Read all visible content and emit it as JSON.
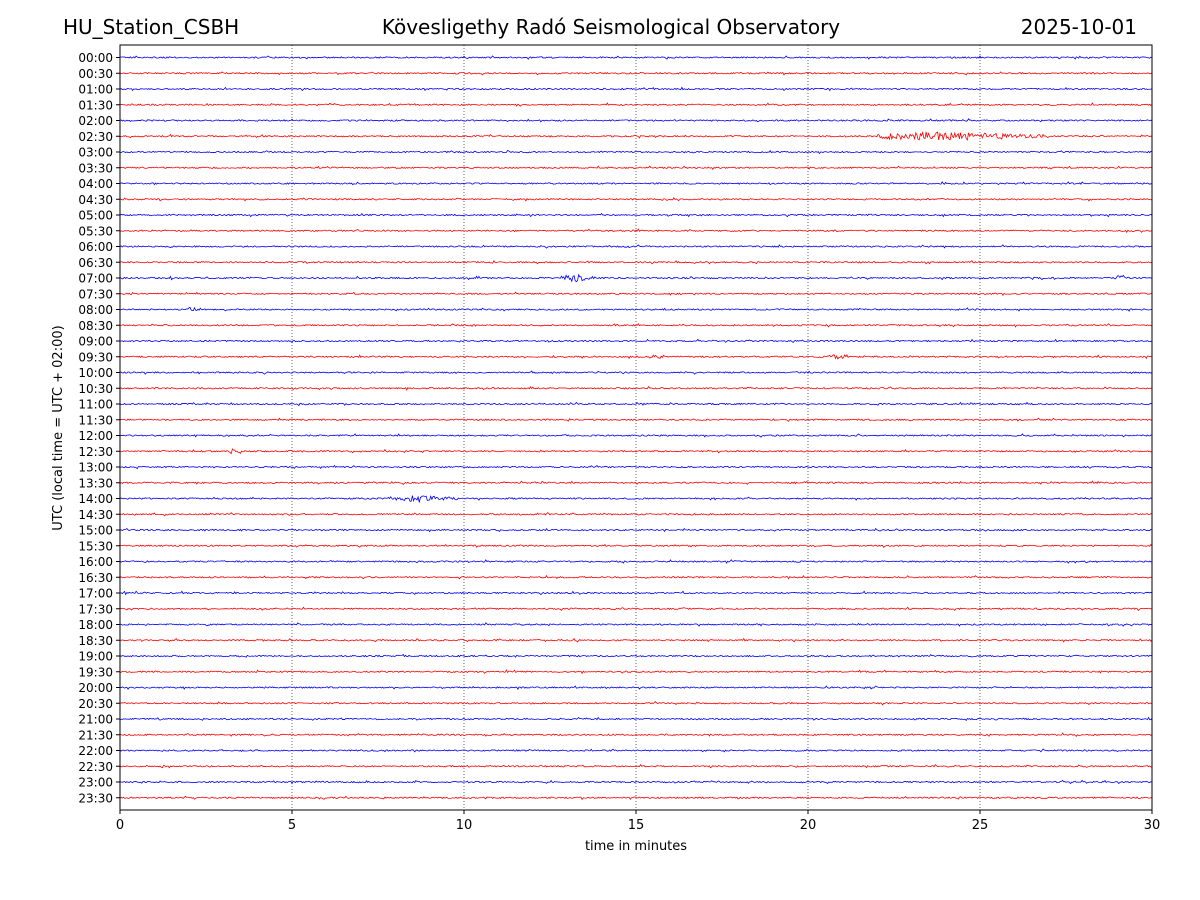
{
  "header": {
    "station": "HU_Station_CSBH",
    "observatory": "Kövesligethy Radó Seismological Observatory",
    "date": "2025-10-01"
  },
  "colors": {
    "even_rows": "#0000ff",
    "odd_rows": "#ff0000",
    "grid": "#000000"
  },
  "chart_data": {
    "type": "line",
    "subtype": "helicorder / seismogram drum plot",
    "title": "Kövesligethy Radó Seismological Observatory",
    "xlabel": "time in minutes",
    "ylabel": "UTC (local time = UTC + 02:00)",
    "xlim": [
      0,
      30
    ],
    "xticks": [
      0,
      5,
      10,
      15,
      20,
      25,
      30
    ],
    "grid": "vertical dotted lines at x = 5, 10, 15, 20, 25",
    "row_colors": "alternating blue / red",
    "rows": [
      "00:00",
      "00:30",
      "01:00",
      "01:30",
      "02:00",
      "02:30",
      "03:00",
      "03:30",
      "04:00",
      "04:30",
      "05:00",
      "05:30",
      "06:00",
      "06:30",
      "07:00",
      "07:30",
      "08:00",
      "08:30",
      "09:00",
      "09:30",
      "10:00",
      "10:30",
      "11:00",
      "11:30",
      "12:00",
      "12:30",
      "13:00",
      "13:30",
      "14:00",
      "14:30",
      "15:00",
      "15:30",
      "16:00",
      "16:30",
      "17:00",
      "17:30",
      "18:00",
      "18:30",
      "19:00",
      "19:30",
      "20:00",
      "20:30",
      "21:00",
      "21:30",
      "22:00",
      "22:30",
      "23:00",
      "23:30"
    ],
    "events": [
      {
        "row": "02:30",
        "x_start": 22.0,
        "x_end": 27.0,
        "amplitude": "moderate",
        "peak_x": 23.8
      },
      {
        "row": "07:00",
        "x_start": 12.8,
        "x_end": 13.8,
        "amplitude": "moderate",
        "peak_x": 13.2
      },
      {
        "row": "07:00",
        "x_start": 28.9,
        "x_end": 29.3,
        "amplitude": "small",
        "peak_x": 29.1
      },
      {
        "row": "08:00",
        "x_start": 2.0,
        "x_end": 2.4,
        "amplitude": "small",
        "peak_x": 2.1
      },
      {
        "row": "09:30",
        "x_start": 15.4,
        "x_end": 15.8,
        "amplitude": "small",
        "peak_x": 15.6
      },
      {
        "row": "09:30",
        "x_start": 20.6,
        "x_end": 21.2,
        "amplitude": "small",
        "peak_x": 20.9
      },
      {
        "row": "12:30",
        "x_start": 3.2,
        "x_end": 3.5,
        "amplitude": "small",
        "peak_x": 3.3
      },
      {
        "row": "14:00",
        "x_start": 7.9,
        "x_end": 9.9,
        "amplitude": "small",
        "peak_x": 8.6
      },
      {
        "row": "16:00",
        "x_start": 17.6,
        "x_end": 17.8,
        "amplitude": "small",
        "peak_x": 17.7
      },
      {
        "row": "22:30",
        "x_start": 1.1,
        "x_end": 1.3,
        "amplitude": "small",
        "peak_x": 1.2
      }
    ]
  }
}
